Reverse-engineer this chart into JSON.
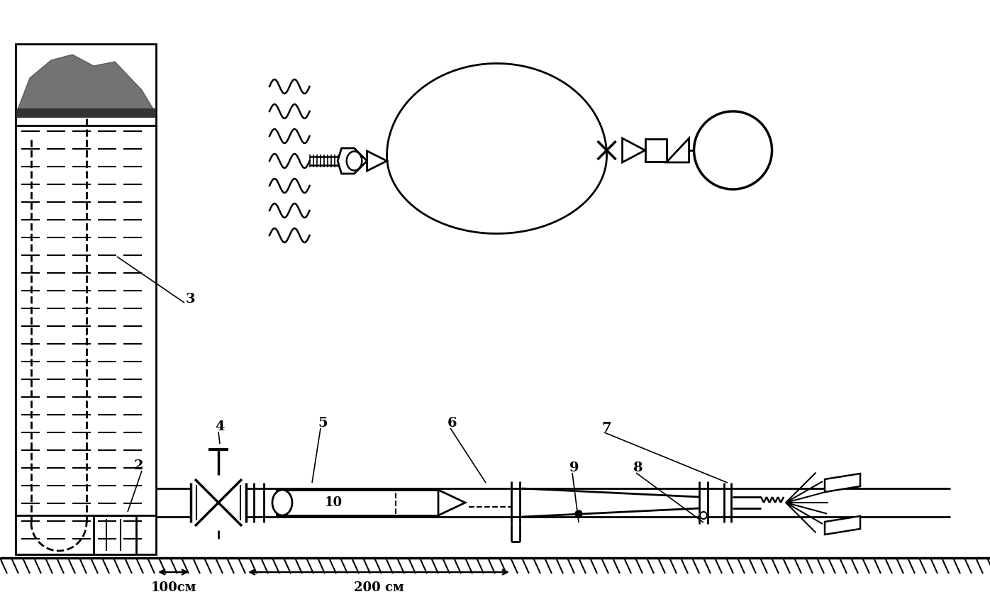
{
  "bg_color": "#ffffff",
  "line_color": "#000000",
  "dim_100": "100см",
  "dim_200": "200 см",
  "figsize": [
    13.96,
    8.52
  ]
}
